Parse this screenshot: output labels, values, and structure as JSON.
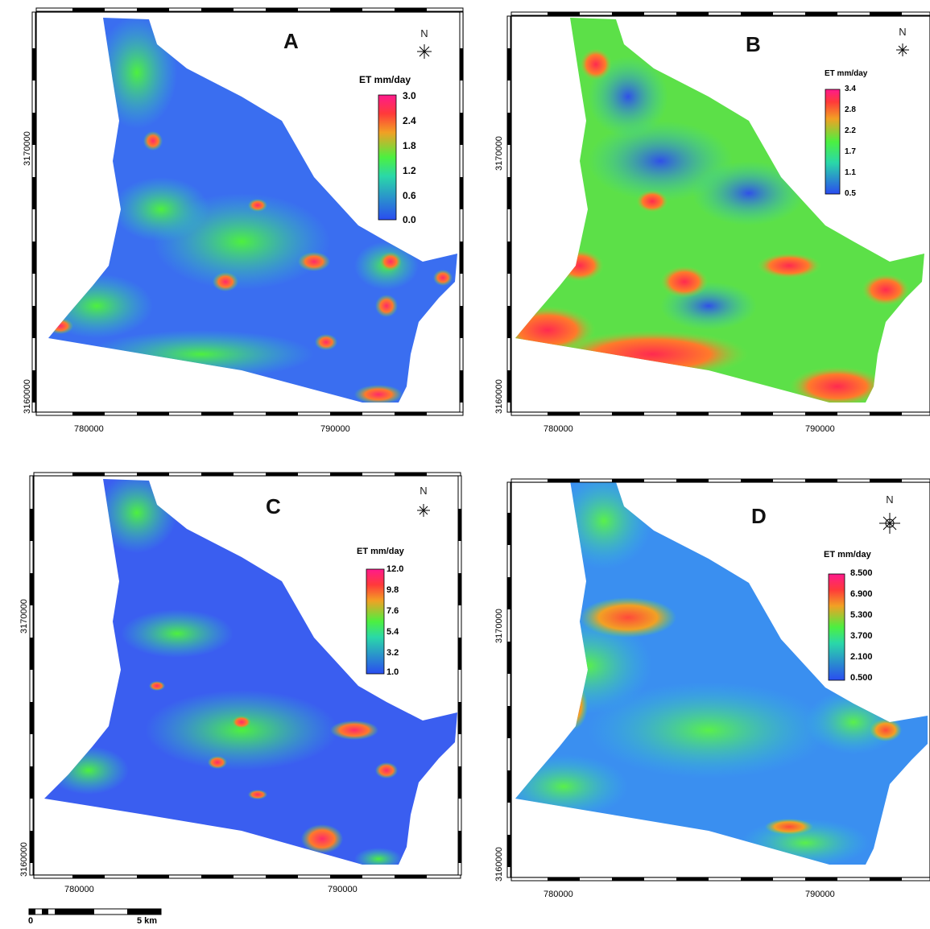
{
  "panels": [
    {
      "id": "A",
      "letter": "A",
      "north": "N",
      "legend_title": "ET mm/day",
      "labels": [
        "3.0",
        "2.4",
        "1.8",
        "1.2",
        "0.6",
        "0.0"
      ],
      "x_ticks": [
        "780000",
        "790000"
      ],
      "y_ticks": [
        "3170000",
        "3160000"
      ]
    },
    {
      "id": "B",
      "letter": "B",
      "north": "N",
      "legend_title": "ET mm/day",
      "labels": [
        "3.4",
        "2.8",
        "2.2",
        "1.7",
        "1.1",
        "0.5"
      ],
      "x_ticks": [
        "780000",
        "790000"
      ],
      "y_ticks": [
        "3170000",
        "3160000"
      ]
    },
    {
      "id": "C",
      "letter": "C",
      "north": "N",
      "legend_title": "ET mm/day",
      "labels": [
        "12.0",
        "9.8",
        "7.6",
        "5.4",
        "3.2",
        "1.0"
      ],
      "x_ticks": [
        "780000",
        "790000"
      ],
      "y_ticks": [
        "3170000",
        "3160000"
      ]
    },
    {
      "id": "D",
      "letter": "D",
      "north": "N",
      "legend_title": "ET mm/day",
      "labels": [
        "8.500",
        "6.900",
        "5.300",
        "3.700",
        "2.100",
        "0.500"
      ],
      "x_ticks": [
        "780000",
        "790000"
      ],
      "y_ticks": [
        "3170000",
        "3160000"
      ]
    }
  ],
  "scale_bar": {
    "start": "0",
    "end": "5 km"
  },
  "colors": {
    "low": "#2f5fe8",
    "mid": "#3ee05a",
    "high": "#ff1f6a"
  }
}
